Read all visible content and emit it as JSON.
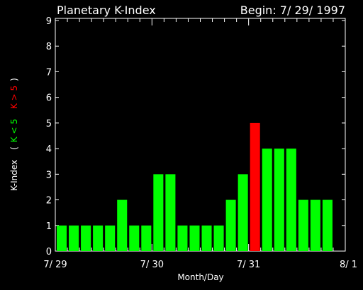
{
  "chart_data": {
    "type": "bar",
    "title": "Planetary K-Index",
    "begin_label": "Begin: 7/ 29/ 1997",
    "xlabel": "Month/Day",
    "ylabel_prefix": "K-Index",
    "ylabel_open": "(",
    "ylabel_low": "K < 5",
    "ylabel_high": "K > 5",
    "ylabel_close": ")",
    "ylim": [
      0,
      9
    ],
    "yticks": [
      "0",
      "1",
      "2",
      "3",
      "4",
      "5",
      "6",
      "7",
      "8",
      "9"
    ],
    "xlim": [
      0,
      24
    ],
    "xticks": [
      {
        "x": 0,
        "label": "7/ 29"
      },
      {
        "x": 8,
        "label": "7/ 30"
      },
      {
        "x": 16,
        "label": "7/ 31"
      },
      {
        "x": 24,
        "label": "8/ 1"
      }
    ],
    "values": [
      1,
      1,
      1,
      1,
      1,
      2,
      1,
      1,
      3,
      3,
      1,
      1,
      1,
      1,
      2,
      3,
      5,
      4,
      4,
      4,
      2,
      2,
      2
    ],
    "colors": {
      "background": "#000000",
      "axis": "#ffffff",
      "low": "#00ff00",
      "high": "#ff0000"
    }
  }
}
